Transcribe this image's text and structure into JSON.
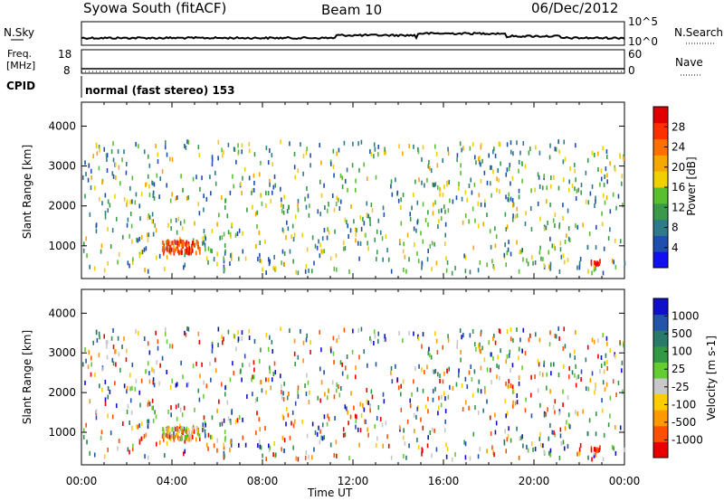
{
  "header": {
    "title": "Syowa South (fitACF)",
    "beam": "Beam 10",
    "date": "06/Dec/2012"
  },
  "noise_panel": {
    "left_label": "N.Sky",
    "right_label": "N.Search",
    "scale_top": "10^5",
    "scale_bottom": "10^0"
  },
  "freq_panel": {
    "left_label_line1": "Freq.",
    "left_label_line2": "[MHz]",
    "left_tick_top": "18",
    "left_tick_bottom": "8",
    "right_label": "Nave",
    "right_tick_top": "60",
    "right_tick_bottom": "0",
    "cpid_label": "CPID",
    "cpid_text": "normal (fast stereo) 153"
  },
  "time_axis": {
    "label": "Time UT",
    "ticks": [
      "00:00",
      "04:00",
      "08:00",
      "12:00",
      "16:00",
      "20:00",
      "00:00"
    ]
  },
  "colors": {
    "power_scale": [
      "#1010f0",
      "#1f4fae",
      "#2f7a8a",
      "#3a9a4a",
      "#58c030",
      "#f0d000",
      "#f5a800",
      "#ff7000",
      "#ff3000",
      "#e00000"
    ],
    "velocity_scale": [
      "#e80000",
      "#ff5000",
      "#ff9900",
      "#ffcc00",
      "#c8c8c8",
      "#66cc33",
      "#339944",
      "#2a7a6a",
      "#2255aa",
      "#1010c8"
    ]
  },
  "chart_data": [
    {
      "type": "heatmap",
      "panel": "power",
      "ylabel": "Slant Range [km]",
      "yticks": [
        1000,
        2000,
        3000,
        4000
      ],
      "ylim": [
        180,
        4600
      ],
      "xlim": [
        0,
        24
      ],
      "colorbar": {
        "label": "Power [dB]",
        "ticks": [
          "4",
          "8",
          "12",
          "16",
          "20",
          "24",
          "28"
        ],
        "range": [
          0,
          32
        ]
      },
      "features": [
        {
          "desc": "strong echoes",
          "time_h": [
            3.5,
            5.2
          ],
          "range_km": [
            800,
            1100
          ],
          "dB": [
            24,
            30
          ]
        },
        {
          "desc": "strong echo",
          "time_h": 22.8,
          "range_km": 550,
          "dB": 28
        },
        {
          "desc": "scattered echoes",
          "time_h": [
            0,
            24
          ],
          "range_km": [
            200,
            3600
          ],
          "dB": [
            4,
            24
          ]
        }
      ]
    },
    {
      "type": "heatmap",
      "panel": "velocity",
      "ylabel": "Slant Range [km]",
      "yticks": [
        1000,
        2000,
        3000,
        4000
      ],
      "ylim": [
        180,
        4600
      ],
      "xlim": [
        0,
        24
      ],
      "colorbar": {
        "label": "Velocity [m s-1]",
        "ticks": [
          "1000",
          "500",
          "100",
          "25",
          "-25",
          "-100",
          "-500",
          "-1000"
        ]
      },
      "features": [
        {
          "desc": "mixed velocities",
          "time_h": [
            3.5,
            5.2
          ],
          "range_km": [
            800,
            1100
          ]
        },
        {
          "desc": "negative velocities",
          "time_h": 22.8,
          "range_km": 550,
          "velocity": -1000
        },
        {
          "desc": "scattered echoes",
          "time_h": [
            0,
            24
          ],
          "range_km": [
            200,
            3600
          ]
        }
      ]
    }
  ]
}
